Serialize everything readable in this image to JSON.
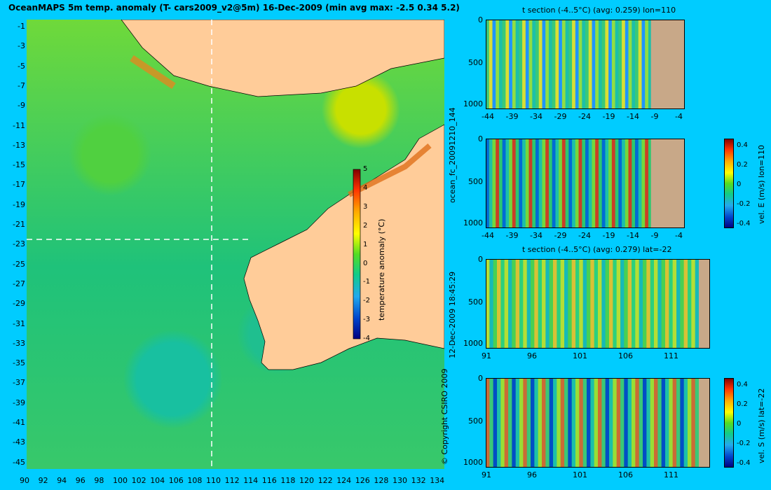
{
  "main_title": "OceanMAPS 5m temp. anomaly (T- cars2009_v2@5m) 16-Dec-2009 (min avg max: -2.5 0.34 5.2)",
  "map": {
    "lat_ticks": [
      "-1",
      "-3",
      "-5",
      "-7",
      "-9",
      "-11",
      "-13",
      "-15",
      "-17",
      "-19",
      "-21",
      "-23",
      "-25",
      "-27",
      "-29",
      "-31",
      "-33",
      "-35",
      "-37",
      "-39",
      "-41",
      "-43",
      "-45"
    ],
    "lon_ticks": [
      "90",
      "92",
      "94",
      "96",
      "98",
      "100",
      "102",
      "104",
      "106",
      "108",
      "110",
      "112",
      "114",
      "116",
      "118",
      "120",
      "122",
      "124",
      "126",
      "128",
      "130",
      "132",
      "134"
    ],
    "colorbar_label": "temperature anomaly (°C)",
    "colorbar_ticks": [
      "5",
      "4",
      "3",
      "2",
      "1",
      "0",
      "-1",
      "-2",
      "-3",
      "-4"
    ],
    "section_lon": 110,
    "section_lat": -22
  },
  "side_labels": {
    "run_id": "ocean_fc_20091210_144",
    "run_time": "12-Dec-2009 18:45:29",
    "copyright": "© Copyright CSIRO 2009"
  },
  "panels": [
    {
      "title": "t section (-4..5°C) (avg: 0.259) lon=110",
      "y_ticks": [
        "0",
        "500",
        "1000"
      ],
      "x_ticks": [
        "-44",
        "-39",
        "-34",
        "-29",
        "-24",
        "-19",
        "-14",
        "-9",
        "-4"
      ],
      "colorbar_label": "",
      "colorbar_ticks": []
    },
    {
      "title": "",
      "y_ticks": [
        "0",
        "500",
        "1000"
      ],
      "x_ticks": [
        "-44",
        "-39",
        "-34",
        "-29",
        "-24",
        "-19",
        "-14",
        "-9",
        "-4"
      ],
      "colorbar_label": "vel. E (m/s) lon=110",
      "colorbar_ticks": [
        "0.4",
        "0.2",
        "0",
        "-0.2",
        "-0.4"
      ]
    },
    {
      "title": "t section (-4..5°C) (avg: 0.279) lat=-22",
      "y_ticks": [
        "0",
        "500",
        "1000"
      ],
      "x_ticks": [
        "91",
        "96",
        "101",
        "106",
        "111"
      ],
      "colorbar_label": "",
      "colorbar_ticks": []
    },
    {
      "title": "",
      "y_ticks": [
        "0",
        "500",
        "1000"
      ],
      "x_ticks": [
        "91",
        "96",
        "101",
        "106",
        "111"
      ],
      "colorbar_label": "vel. S (m/s) lat=-22",
      "colorbar_ticks": [
        "0.4",
        "0.2",
        "0",
        "-0.2",
        "-0.4"
      ]
    }
  ],
  "chart_data": [
    {
      "type": "heatmap",
      "title": "OceanMAPS 5m temp. anomaly (T- cars2009_v2@5m) 16-Dec-2009 (min avg max: -2.5 0.34 5.2)",
      "x": [
        90,
        134
      ],
      "y": [
        -45,
        0
      ],
      "ylim": [
        -45,
        0
      ],
      "clim": [
        -4,
        5
      ],
      "stats": {
        "min": -2.5,
        "avg": 0.34,
        "max": 5.2
      }
    },
    {
      "type": "heatmap",
      "title": "t section (-4..5°C) (avg: 0.259) lon=110",
      "xlim": [
        -45,
        0
      ],
      "ylim": [
        1000,
        0
      ],
      "clim": [
        -4,
        5
      ],
      "avg": 0.259
    },
    {
      "type": "heatmap",
      "title": "",
      "xlim": [
        -45,
        0
      ],
      "ylim": [
        1000,
        0
      ],
      "clim": [
        -0.4,
        0.4
      ],
      "colorbar": "vel. E (m/s) lon=110"
    },
    {
      "type": "heatmap",
      "title": "t section (-4..5°C) (avg: 0.279) lat=-22",
      "xlim": [
        89,
        115
      ],
      "ylim": [
        1000,
        0
      ],
      "clim": [
        -4,
        5
      ],
      "avg": 0.279
    },
    {
      "type": "heatmap",
      "title": "",
      "xlim": [
        89,
        115
      ],
      "ylim": [
        1000,
        0
      ],
      "clim": [
        -0.4,
        0.4
      ],
      "colorbar": "vel. S (m/s) lat=-22"
    }
  ]
}
